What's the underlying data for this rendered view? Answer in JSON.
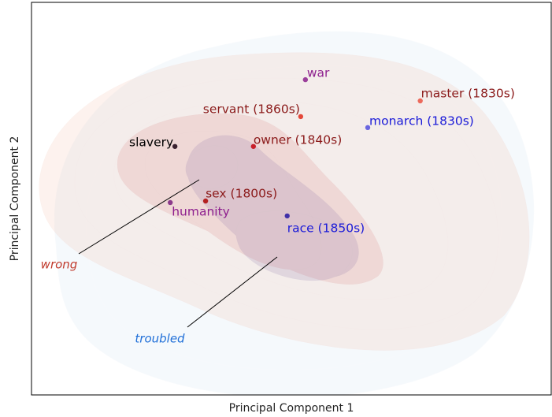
{
  "chart_data": {
    "type": "scatter",
    "xlabel": "Principal Component 1",
    "ylabel": "Principal Component 2",
    "xlim": [
      0,
      100
    ],
    "ylim": [
      0,
      100
    ],
    "points": [
      {
        "label": "war",
        "x": 52.7,
        "y": 80.3,
        "color": "#9b3f9b",
        "label_color": "#8e1f8e"
      },
      {
        "label": "master (1830s)",
        "x": 74.8,
        "y": 74.9,
        "color": "#ec6a5c",
        "label_color": "#8b1a1a"
      },
      {
        "label": "servant (1860s)",
        "x": 51.8,
        "y": 70.9,
        "color": "#e4483a",
        "label_color": "#8b1a1a"
      },
      {
        "label": "monarch (1830s)",
        "x": 64.7,
        "y": 68.1,
        "color": "#6a66e0",
        "label_color": "#1a1ad8"
      },
      {
        "label": "slavery",
        "x": 27.6,
        "y": 63.3,
        "color": "#3a2230",
        "label_color": "#000000"
      },
      {
        "label": "owner (1840s)",
        "x": 42.7,
        "y": 63.3,
        "color": "#c8202a",
        "label_color": "#8b1a1a"
      },
      {
        "label": "sex (1800s)",
        "x": 33.5,
        "y": 49.4,
        "color": "#b42020",
        "label_color": "#8b1a1a"
      },
      {
        "label": "humanity",
        "x": 26.7,
        "y": 49.0,
        "color": "#8b3a8b",
        "label_color": "#8e1f8e"
      },
      {
        "label": "race (1850s)",
        "x": 49.2,
        "y": 45.6,
        "color": "#4030a8",
        "label_color": "#1a1ad8"
      }
    ],
    "annotations": [
      {
        "text": "wrong",
        "color": "#c0392b"
      },
      {
        "text": "troubled",
        "color": "#1f6fd8"
      }
    ]
  }
}
